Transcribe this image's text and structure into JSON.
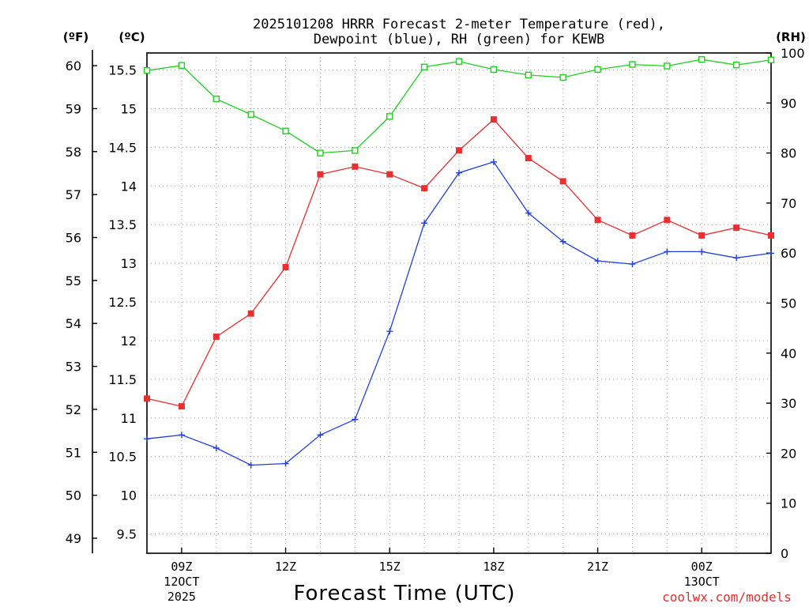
{
  "chart_data": {
    "type": "line",
    "title_line1": "2025101208 HRRR Forecast 2-meter Temperature (red),",
    "title_line2": "Dewpoint (blue), RH (green) for KEWB",
    "xlabel": "Forecast Time (UTC)",
    "unit_f": "(ºF)",
    "unit_c": "(ºC)",
    "unit_rh": "(RH)",
    "watermark": "coolwx.com/models",
    "x_hours": [
      8,
      9,
      10,
      11,
      12,
      13,
      14,
      15,
      16,
      17,
      18,
      19,
      20,
      21,
      22,
      23,
      24,
      25,
      26
    ],
    "xlim": [
      8,
      26
    ],
    "x_ticks": [
      {
        "x": 9,
        "label1": "09Z",
        "label2": "12OCT",
        "label3": "2025"
      },
      {
        "x": 12,
        "label1": "12Z",
        "label2": "",
        "label3": ""
      },
      {
        "x": 15,
        "label1": "15Z",
        "label2": "",
        "label3": ""
      },
      {
        "x": 18,
        "label1": "18Z",
        "label2": "",
        "label3": ""
      },
      {
        "x": 21,
        "label1": "21Z",
        "label2": "",
        "label3": ""
      },
      {
        "x": 24,
        "label1": "00Z",
        "label2": "13OCT",
        "label3": ""
      }
    ],
    "ylim_c": [
      9.25,
      15.72
    ],
    "ylim_rh": [
      0,
      100
    ],
    "c_ticks": [
      "9.5",
      "10",
      "10.5",
      "11",
      "11.5",
      "12",
      "12.5",
      "13",
      "13.5",
      "14",
      "14.5",
      "15",
      "15.5"
    ],
    "f_ticks": [
      "49",
      "50",
      "51",
      "52",
      "53",
      "54",
      "55",
      "56",
      "57",
      "58",
      "59",
      "60"
    ],
    "rh_ticks": [
      "0",
      "10",
      "20",
      "30",
      "40",
      "50",
      "60",
      "70",
      "80",
      "90",
      "100"
    ],
    "series": [
      {
        "name": "Temperature",
        "unit": "C",
        "color": "#e83030",
        "marker": "filled-square",
        "values": [
          11.25,
          11.15,
          12.05,
          12.35,
          12.95,
          14.15,
          14.25,
          14.15,
          13.97,
          14.46,
          14.86,
          14.36,
          14.06,
          13.56,
          13.36,
          13.56,
          13.36,
          13.46,
          13.36
        ]
      },
      {
        "name": "Dewpoint",
        "unit": "C",
        "color": "#2040e0",
        "marker": "plus",
        "values": [
          10.73,
          10.78,
          10.61,
          10.39,
          10.41,
          10.78,
          10.98,
          12.12,
          13.52,
          14.17,
          14.31,
          13.65,
          13.28,
          13.03,
          12.99,
          13.15,
          13.15,
          13.07,
          13.13
        ]
      },
      {
        "name": "RH",
        "unit": "%",
        "color": "#20d020",
        "marker": "open-square",
        "values": [
          96.5,
          97.5,
          90.8,
          87.7,
          84.4,
          80.0,
          80.5,
          87.3,
          97.2,
          98.3,
          96.7,
          95.6,
          95.1,
          96.7,
          97.7,
          97.4,
          98.7,
          97.6,
          98.6
        ]
      }
    ]
  }
}
